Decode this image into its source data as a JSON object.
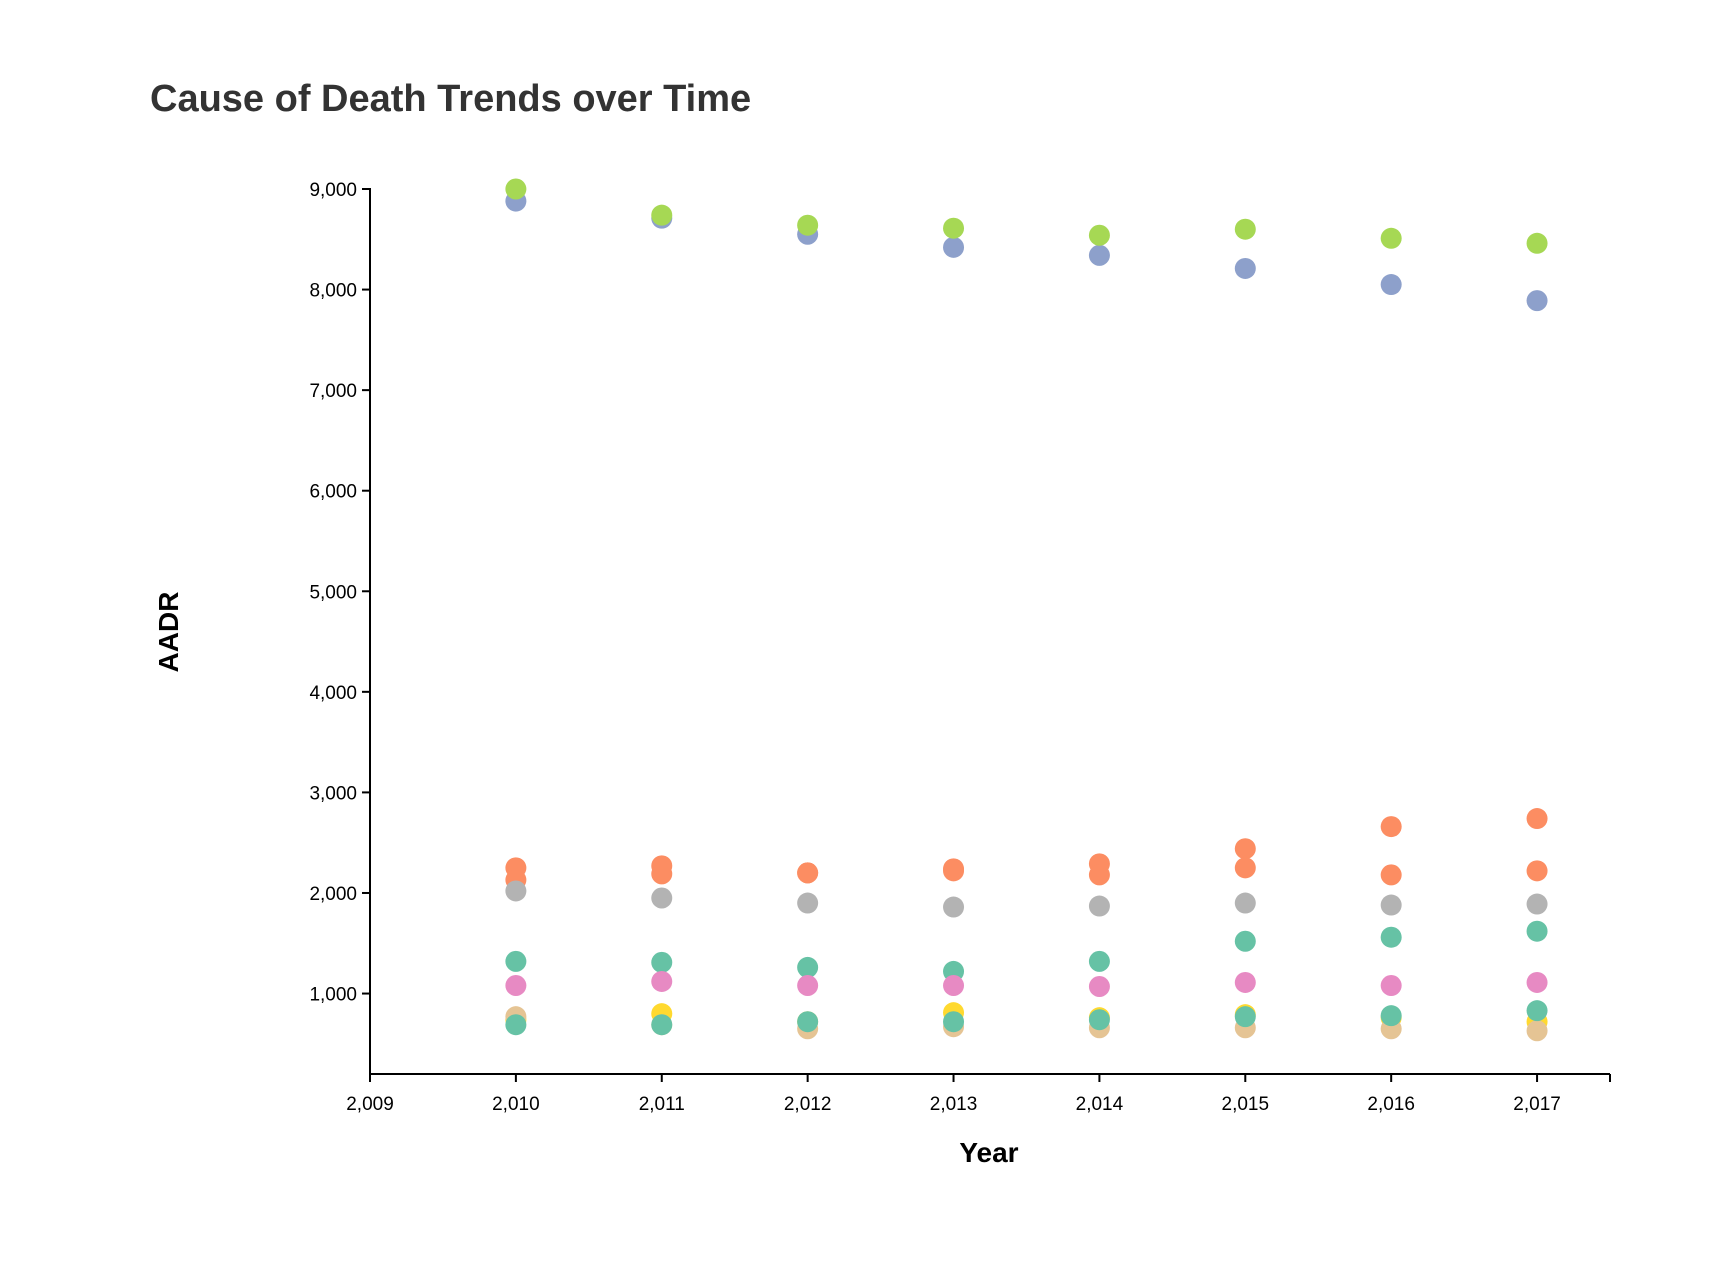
{
  "chart_data": {
    "type": "scatter",
    "title": "Cause of Death Trends over Time",
    "xlabel": "Year",
    "ylabel": "AADR",
    "xlim": [
      2009,
      2017.5
    ],
    "ylim": [
      200,
      9000
    ],
    "x_ticks": [
      "2,009",
      "2,010",
      "2,011",
      "2,012",
      "2,013",
      "2,014",
      "2,015",
      "2,016",
      "2,017"
    ],
    "y_ticks": [
      "1,000",
      "2,000",
      "3,000",
      "4,000",
      "5,000",
      "6,000",
      "7,000",
      "8,000",
      "9,000"
    ],
    "grid": false,
    "x": [
      2010,
      2011,
      2012,
      2013,
      2014,
      2015,
      2016,
      2017
    ],
    "series": [
      {
        "color": "#8DA0CB",
        "values": [
          8880,
          8710,
          8550,
          8420,
          8340,
          8210,
          8050,
          7890
        ]
      },
      {
        "color": "#A6D854",
        "values": [
          9000,
          8740,
          8640,
          8610,
          8540,
          8600,
          8510,
          8460
        ]
      },
      {
        "color": "#FC8D62",
        "values": [
          2250,
          2270,
          2200,
          2240,
          2290,
          2440,
          2660,
          2740
        ]
      },
      {
        "color": "#FC8D62",
        "values": [
          2130,
          2190,
          2200,
          2220,
          2180,
          2250,
          2180,
          2220
        ]
      },
      {
        "color": "#B3B3B3",
        "values": [
          2020,
          1950,
          1900,
          1860,
          1870,
          1900,
          1880,
          1890
        ]
      },
      {
        "color": "#66C2A5",
        "values": [
          1320,
          1310,
          1260,
          1220,
          1320,
          1520,
          1560,
          1620
        ]
      },
      {
        "color": "#E78AC3",
        "values": [
          1080,
          1120,
          1080,
          1080,
          1070,
          1110,
          1080,
          1110
        ]
      },
      {
        "color": "#FFD92F",
        "values": [
          740,
          800,
          720,
          810,
          760,
          790,
          760,
          720
        ]
      },
      {
        "color": "#E5C494",
        "values": [
          770,
          690,
          650,
          670,
          660,
          660,
          650,
          630
        ]
      },
      {
        "color": "#66C2A5",
        "values": [
          690,
          690,
          720,
          720,
          740,
          770,
          780,
          830
        ]
      }
    ]
  }
}
